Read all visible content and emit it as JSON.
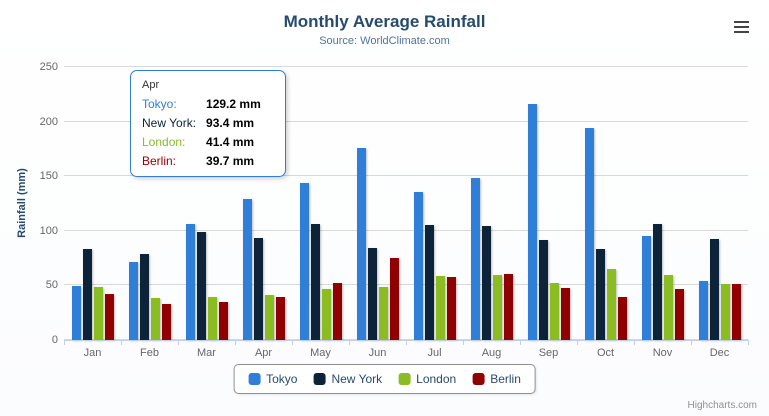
{
  "chart_data": {
    "type": "bar",
    "orientation": "vertical",
    "title": "Monthly Average Rainfall",
    "subtitle": "Source: WorldClimate.com",
    "categories": [
      "Jan",
      "Feb",
      "Mar",
      "Apr",
      "May",
      "Jun",
      "Jul",
      "Aug",
      "Sep",
      "Oct",
      "Nov",
      "Dec"
    ],
    "series": [
      {
        "name": "Tokyo",
        "color": "#2f7ed8",
        "values": [
          49.9,
          71.5,
          106.4,
          129.2,
          144.0,
          176.0,
          135.6,
          148.5,
          216.4,
          194.1,
          95.6,
          54.4
        ]
      },
      {
        "name": "New York",
        "color": "#0d233a",
        "values": [
          83.6,
          78.8,
          98.5,
          93.4,
          106.0,
          84.5,
          105.0,
          104.3,
          91.2,
          83.5,
          106.6,
          92.3
        ]
      },
      {
        "name": "London",
        "color": "#8bbc21",
        "values": [
          48.9,
          38.8,
          39.3,
          41.4,
          47.0,
          48.3,
          59.0,
          59.6,
          52.4,
          65.2,
          59.3,
          51.2
        ]
      },
      {
        "name": "Berlin",
        "color": "#910000",
        "values": [
          42.4,
          33.2,
          34.5,
          39.7,
          52.6,
          75.5,
          57.4,
          60.4,
          47.6,
          39.1,
          46.8,
          51.1
        ]
      }
    ],
    "xlabel": "",
    "ylabel": "Rainfall (mm)",
    "ylim": [
      0,
      250
    ],
    "yticks": [
      0,
      50,
      100,
      150,
      200,
      250
    ],
    "grid": true,
    "legend_position": "bottom"
  },
  "tooltip": {
    "header": "Apr",
    "rows": [
      {
        "label": "Tokyo:",
        "value": "129.2 mm",
        "color": "#2f7ed8"
      },
      {
        "label": "New York:",
        "value": "93.4 mm",
        "color": "#0d233a"
      },
      {
        "label": "London:",
        "value": "41.4 mm",
        "color": "#8bbc21"
      },
      {
        "label": "Berlin:",
        "value": "39.7 mm",
        "color": "#910000"
      }
    ]
  },
  "icons": {
    "export_menu": "hamburger-menu-icon"
  },
  "credits": {
    "label": "Highcharts.com"
  }
}
